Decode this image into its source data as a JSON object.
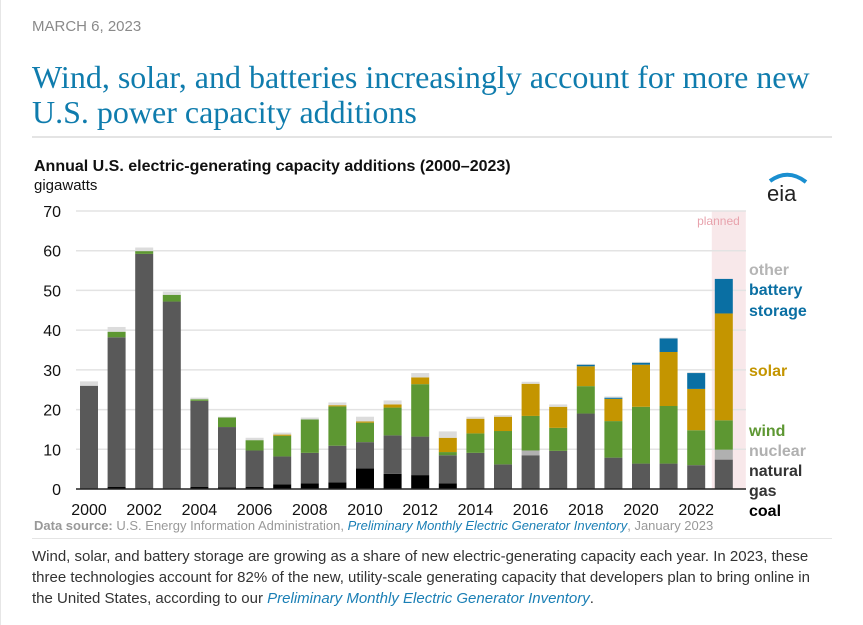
{
  "date": "MARCH 6, 2023",
  "headline": "Wind, solar, and batteries increasingly account for more new U.S. power capacity additions",
  "logo_text": "eia",
  "source": {
    "label": "Data source:",
    "text": "U.S. Energy Information Administration,",
    "link": "Preliminary Monthly Electric Generator Inventory",
    "date": ", January 2023"
  },
  "body": {
    "text": "Wind, solar, and battery storage are growing as a share of new electric-generating capacity each year. In 2023, these three technologies account for 82% of the new, utility-scale generating capacity that developers plan to bring online in the United States, according to our",
    "link": "Preliminary Monthly Electric Generator Inventory",
    "end": "."
  },
  "chart_data": {
    "type": "bar",
    "stacked": true,
    "title": "Annual U.S. electric-generating capacity additions (2000–2023)",
    "ylabel": "gigawatts",
    "ylim": [
      0,
      70
    ],
    "yticks": [
      0,
      10,
      20,
      30,
      40,
      50,
      60,
      70
    ],
    "grid": true,
    "annotation": "planned",
    "planned_category": "2023",
    "legend_placement": "right",
    "categories": [
      "2000",
      "2001",
      "2002",
      "2003",
      "2004",
      "2005",
      "2006",
      "2007",
      "2008",
      "2009",
      "2010",
      "2011",
      "2012",
      "2013",
      "2014",
      "2015",
      "2016",
      "2017",
      "2018",
      "2019",
      "2020",
      "2021",
      "2022",
      "2023"
    ],
    "xtick_labels": [
      "2000",
      "2002",
      "2004",
      "2006",
      "2008",
      "2010",
      "2012",
      "2014",
      "2016",
      "2018",
      "2020",
      "2022"
    ],
    "series": [
      {
        "name": "coal",
        "color": "#000000",
        "label_lines": [
          "coal"
        ],
        "values": [
          0,
          0.5,
          0,
          0,
          0.5,
          0.4,
          0.5,
          1.2,
          1.4,
          1.7,
          5.2,
          3.8,
          3.5,
          1.4,
          0,
          0,
          0,
          0,
          0,
          0,
          0,
          0,
          0,
          0
        ]
      },
      {
        "name": "natural gas",
        "color": "#595959",
        "label_color": "#333333",
        "label_lines": [
          "natural",
          "gas"
        ],
        "values": [
          26.0,
          37.7,
          59.2,
          47.2,
          21.7,
          15.2,
          9.2,
          7.0,
          7.7,
          9.2,
          6.6,
          9.7,
          9.7,
          7.1,
          9.1,
          6.2,
          8.5,
          9.6,
          19.0,
          7.9,
          6.4,
          6.4,
          6.0,
          7.4
        ]
      },
      {
        "name": "nuclear",
        "color": "#b0b0b0",
        "label_lines": [
          "nuclear"
        ],
        "values": [
          0,
          0,
          0,
          0,
          0,
          0,
          0,
          0,
          0,
          0,
          0,
          0,
          0,
          0,
          0,
          0,
          1.2,
          0,
          0,
          0,
          0,
          0,
          0,
          2.5
        ]
      },
      {
        "name": "wind",
        "color": "#5d9732",
        "label_lines": [
          "wind"
        ],
        "values": [
          0,
          1.4,
          0.7,
          1.7,
          0.4,
          2.4,
          2.6,
          5.2,
          8.4,
          9.9,
          4.9,
          7.0,
          13.2,
          0.8,
          4.9,
          8.4,
          8.7,
          5.8,
          6.9,
          9.2,
          14.3,
          14.5,
          8.8,
          7.4
        ]
      },
      {
        "name": "solar",
        "color": "#c49500",
        "label_lines": [
          "solar"
        ],
        "values": [
          0,
          0,
          0,
          0,
          0,
          0,
          0,
          0.3,
          0,
          0.3,
          0.3,
          0.8,
          1.7,
          3.6,
          3.7,
          3.6,
          8.1,
          5.3,
          5.0,
          5.6,
          10.6,
          13.6,
          10.4,
          26.9
        ]
      },
      {
        "name": "battery storage",
        "color": "#0a6fa3",
        "label_lines": [
          "battery",
          "storage"
        ],
        "values": [
          0,
          0,
          0,
          0,
          0,
          0,
          0,
          0,
          0,
          0,
          0,
          0,
          0,
          0,
          0,
          0,
          0,
          0,
          0.4,
          0.3,
          0.5,
          3.4,
          4.0,
          8.7
        ]
      },
      {
        "name": "other",
        "color": "#dcdcdc",
        "label_color": "#b5b5b5",
        "label_lines": [
          "other"
        ],
        "values": [
          1.1,
          1.2,
          0.9,
          0.8,
          0.4,
          0.2,
          0.6,
          0.5,
          0.5,
          0.7,
          1.2,
          1.0,
          1.1,
          1.6,
          0.5,
          0.4,
          0.5,
          0.6,
          0.2,
          0.3,
          0.2,
          0.2,
          0.2,
          0
        ]
      }
    ]
  }
}
